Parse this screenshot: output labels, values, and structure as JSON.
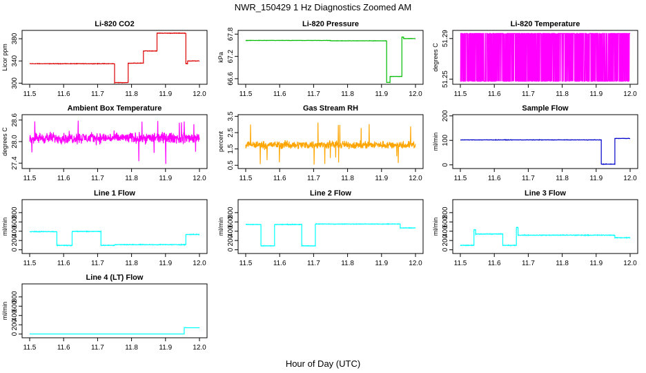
{
  "figure": {
    "title": "NWR_150429  1 Hz Diagnostics Zoomed AM",
    "xlabel": "Hour of Day (UTC)"
  },
  "chart_data": [
    {
      "type": "line",
      "title": "Li-820 CO2",
      "ylabel": "Licor ppm",
      "color": "#dd0000",
      "xlim": [
        11.5,
        12.0
      ],
      "ylim": [
        298,
        395
      ],
      "yticks": [
        "300",
        "340",
        "380"
      ],
      "ytick_values": [
        300,
        340,
        380
      ],
      "xticks": [
        "11.5",
        "11.6",
        "11.7",
        "11.8",
        "11.9",
        "12.0"
      ],
      "noise": 0.6,
      "segments": [
        [
          11.5,
          11.75,
          335
        ],
        [
          11.75,
          11.79,
          301
        ],
        [
          11.79,
          11.835,
          336
        ],
        [
          11.835,
          11.875,
          358
        ],
        [
          11.875,
          11.96,
          390
        ],
        [
          11.96,
          11.965,
          335
        ],
        [
          11.965,
          12.0,
          340
        ]
      ]
    },
    {
      "type": "line",
      "title": "Li-820 Pressure",
      "ylabel": "kPa",
      "color": "#00bb00",
      "xlim": [
        11.5,
        12.0
      ],
      "ylim": [
        66.45,
        67.9
      ],
      "yticks": [
        "66.6",
        "67.2",
        "67.8"
      ],
      "ytick_values": [
        66.6,
        67.2,
        67.8
      ],
      "xticks": [
        "11.5",
        "11.6",
        "11.7",
        "11.8",
        "11.9",
        "12.0"
      ],
      "noise": 0.006,
      "segments": [
        [
          11.5,
          11.75,
          67.63
        ],
        [
          11.75,
          11.915,
          67.62
        ],
        [
          11.915,
          11.925,
          66.5
        ],
        [
          11.925,
          11.96,
          66.66
        ],
        [
          11.96,
          11.965,
          67.72
        ],
        [
          11.965,
          12.0,
          67.68
        ]
      ]
    },
    {
      "type": "line",
      "title": "Li-820 Temperature",
      "ylabel": "degrees C",
      "color": "#ff00ff",
      "xlim": [
        11.5,
        12.0
      ],
      "ylim": [
        51.245,
        51.298
      ],
      "yticks": [
        "51.25",
        "51.29"
      ],
      "ytick_values": [
        51.25,
        51.29
      ],
      "xticks": [
        "11.5",
        "11.6",
        "11.7",
        "11.8",
        "11.9",
        "12.0"
      ],
      "pattern": "binary",
      "levels": [
        51.248,
        51.295
      ],
      "low_level": 51.272
    },
    {
      "type": "line",
      "title": "Ambient Box Temperature",
      "ylabel": "degrees C",
      "color": "#ff00ff",
      "xlim": [
        11.5,
        12.0
      ],
      "ylim": [
        27.25,
        28.75
      ],
      "yticks": [
        "27.4",
        "28.0",
        "28.6"
      ],
      "ytick_values": [
        27.4,
        28.0,
        28.6
      ],
      "xticks": [
        "11.5",
        "11.6",
        "11.7",
        "11.8",
        "11.9",
        "12.0"
      ],
      "pattern": "noise",
      "mean": 28.1,
      "spread": 0.22,
      "spike_low": 27.35,
      "spike_high": 28.7
    },
    {
      "type": "line",
      "title": "Gas Stream RH",
      "ylabel": "percent",
      "color": "#ffa500",
      "xlim": [
        11.5,
        12.0
      ],
      "ylim": [
        0.3,
        3.6
      ],
      "yticks": [
        "0.5",
        "1.5",
        "2.5",
        "3.5"
      ],
      "ytick_values": [
        0.5,
        1.5,
        2.5,
        3.5
      ],
      "xticks": [
        "11.5",
        "11.6",
        "11.7",
        "11.8",
        "11.9",
        "12.0"
      ],
      "pattern": "noise",
      "mean": 1.75,
      "spread": 0.35,
      "spike_low": 0.45,
      "spike_high": 3.3
    },
    {
      "type": "line",
      "title": "Sample Flow",
      "ylabel": "ml/min",
      "color": "#0000cc",
      "xlim": [
        11.5,
        12.0
      ],
      "ylim": [
        -15,
        205
      ],
      "yticks": [
        "0",
        "100",
        "200"
      ],
      "ytick_values": [
        0,
        100,
        200
      ],
      "xticks": [
        "11.5",
        "11.6",
        "11.7",
        "11.8",
        "11.9",
        "12.0"
      ],
      "noise": 1.2,
      "segments": [
        [
          11.5,
          11.915,
          102
        ],
        [
          11.915,
          11.955,
          3
        ],
        [
          11.955,
          11.96,
          108
        ],
        [
          11.96,
          12.0,
          108
        ]
      ]
    },
    {
      "type": "line",
      "title": "Line 1 Flow",
      "ylabel": "ml/min",
      "color": "#00ffff",
      "xlim": [
        11.5,
        12.0
      ],
      "ylim": [
        -80,
        1080
      ],
      "yticks": [
        "0",
        "200",
        "400",
        "600",
        "800"
      ],
      "ytick_values": [
        0,
        200,
        400,
        600,
        800
      ],
      "xticks": [
        "11.5",
        "11.6",
        "11.7",
        "11.8",
        "11.9",
        "12.0"
      ],
      "noise": 10,
      "segments": [
        [
          11.5,
          11.58,
          390
        ],
        [
          11.58,
          11.625,
          95
        ],
        [
          11.625,
          11.71,
          395
        ],
        [
          11.71,
          11.75,
          95
        ],
        [
          11.75,
          11.96,
          110
        ],
        [
          11.96,
          12.0,
          330
        ]
      ]
    },
    {
      "type": "line",
      "title": "Line 2 Flow",
      "ylabel": "ml/min",
      "color": "#00ffff",
      "xlim": [
        11.5,
        12.0
      ],
      "ylim": [
        -80,
        1080
      ],
      "yticks": [
        "0",
        "200",
        "400",
        "600",
        "800"
      ],
      "ytick_values": [
        0,
        200,
        400,
        600,
        800
      ],
      "xticks": [
        "11.5",
        "11.6",
        "11.7",
        "11.8",
        "11.9",
        "12.0"
      ],
      "noise": 8,
      "segments": [
        [
          11.5,
          11.545,
          545
        ],
        [
          11.545,
          11.585,
          85
        ],
        [
          11.585,
          11.665,
          545
        ],
        [
          11.665,
          11.705,
          85
        ],
        [
          11.705,
          11.955,
          555
        ],
        [
          11.955,
          12.0,
          470
        ]
      ]
    },
    {
      "type": "line",
      "title": "Line 3 Flow",
      "ylabel": "ml/min",
      "color": "#00ffff",
      "xlim": [
        11.5,
        12.0
      ],
      "ylim": [
        -80,
        1080
      ],
      "yticks": [
        "0",
        "200",
        "400",
        "600",
        "800"
      ],
      "ytick_values": [
        0,
        200,
        400,
        600,
        800
      ],
      "xticks": [
        "11.5",
        "11.6",
        "11.7",
        "11.8",
        "11.9",
        "12.0"
      ],
      "noise": 10,
      "segments": [
        [
          11.5,
          11.54,
          95
        ],
        [
          11.54,
          11.545,
          430
        ],
        [
          11.545,
          11.625,
          340
        ],
        [
          11.625,
          11.665,
          95
        ],
        [
          11.665,
          11.67,
          480
        ],
        [
          11.67,
          11.955,
          315
        ],
        [
          11.955,
          12.0,
          260
        ]
      ]
    },
    {
      "type": "line",
      "title": "Line 4 (LT) Flow",
      "ylabel": "ml/min",
      "color": "#00ffff",
      "xlim": [
        11.5,
        12.0
      ],
      "ylim": [
        -80,
        1080
      ],
      "yticks": [
        "0",
        "200",
        "400",
        "600",
        "800"
      ],
      "ytick_values": [
        0,
        200,
        400,
        600,
        800
      ],
      "xticks": [
        "11.5",
        "11.6",
        "11.7",
        "11.8",
        "11.9",
        "12.0"
      ],
      "noise": 0,
      "segments": [
        [
          11.5,
          11.955,
          2
        ],
        [
          11.955,
          11.96,
          140
        ],
        [
          11.96,
          12.0,
          135
        ]
      ]
    }
  ]
}
